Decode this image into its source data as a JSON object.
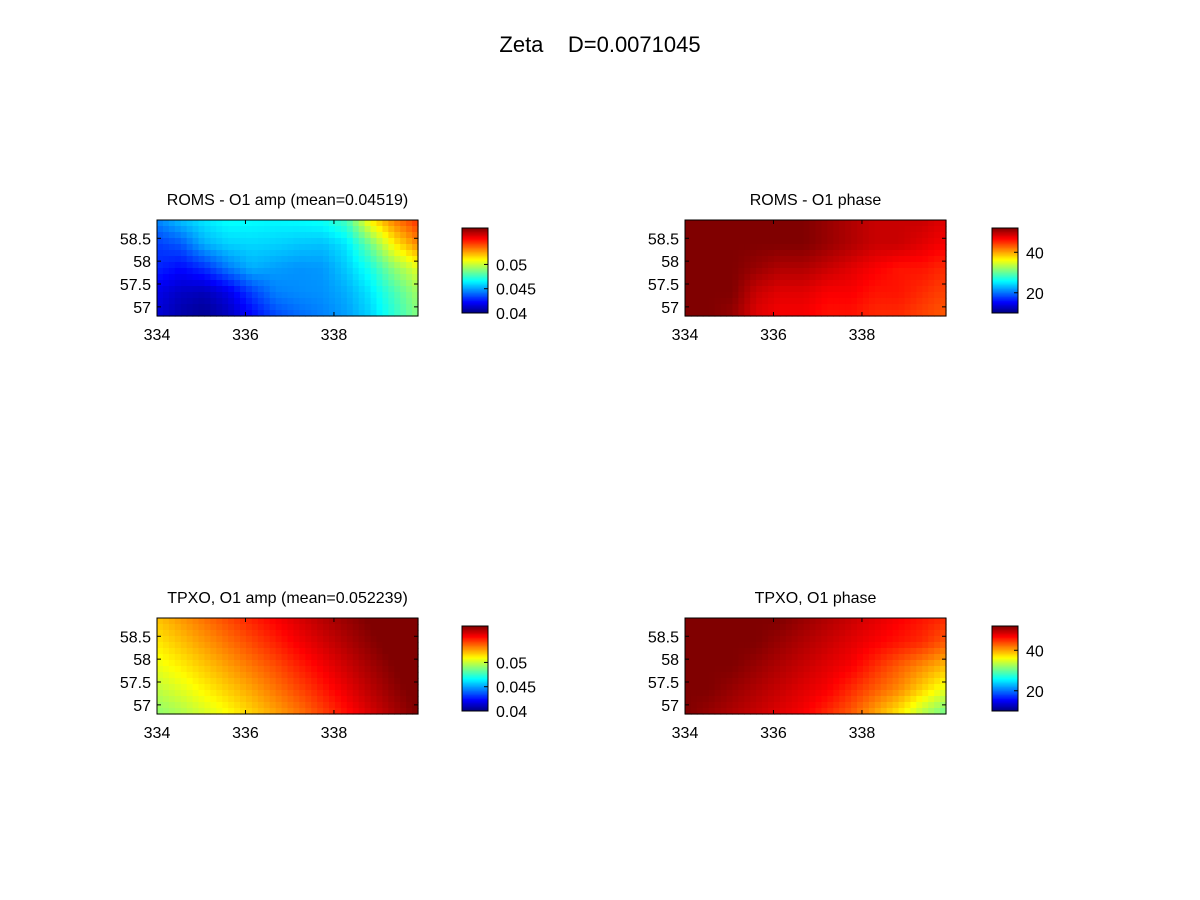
{
  "figure": {
    "title": "Zeta    D=0.0071045"
  },
  "chart_data": [
    {
      "type": "heatmap",
      "title": "ROMS - O1 amp (mean=0.04519)",
      "xticks": [
        "334",
        "336",
        "338"
      ],
      "yticks": [
        "58.5",
        "58",
        "57.5",
        "57"
      ],
      "xlim": [
        334,
        339.9
      ],
      "ylim": [
        56.8,
        58.9
      ],
      "colorbar": {
        "clim": [
          0.04,
          0.0575
        ],
        "ticks": [
          "0.04",
          "0.045",
          "0.05"
        ],
        "tick_values": [
          0.04,
          0.045,
          0.05
        ]
      },
      "grid": [
        [
          0.0445,
          0.0455,
          0.0462,
          0.0467,
          0.0466,
          0.0465,
          0.0466,
          0.0468,
          0.0478,
          0.0512,
          0.0532,
          0.0545
        ],
        [
          0.0432,
          0.0437,
          0.0452,
          0.0458,
          0.0459,
          0.0458,
          0.0456,
          0.0455,
          0.0462,
          0.0485,
          0.0512,
          0.053
        ],
        [
          0.0428,
          0.0423,
          0.043,
          0.0443,
          0.0452,
          0.0449,
          0.0447,
          0.0448,
          0.0457,
          0.047,
          0.049,
          0.0505
        ],
        [
          0.0418,
          0.0412,
          0.041,
          0.0418,
          0.0433,
          0.0444,
          0.0446,
          0.0447,
          0.0452,
          0.0462,
          0.0478,
          0.0493
        ],
        [
          0.0415,
          0.0407,
          0.0403,
          0.041,
          0.0422,
          0.0434,
          0.044,
          0.0444,
          0.0449,
          0.0458,
          0.0473,
          0.0488
        ]
      ]
    },
    {
      "type": "heatmap",
      "title": "ROMS - O1 phase",
      "xticks": [
        "334",
        "336",
        "338"
      ],
      "yticks": [
        "58.5",
        "58",
        "57.5",
        "57"
      ],
      "xlim": [
        334,
        339.9
      ],
      "ylim": [
        56.8,
        58.9
      ],
      "colorbar": {
        "clim": [
          10,
          52
        ],
        "ticks": [
          "20",
          "40"
        ],
        "tick_values": [
          20,
          40
        ]
      },
      "grid": [
        [
          52,
          52,
          52,
          52,
          52,
          52,
          51,
          50,
          49,
          49,
          49,
          48
        ],
        [
          52,
          52,
          52,
          52,
          52,
          52,
          51,
          50,
          49,
          49,
          48,
          47
        ],
        [
          52,
          52,
          52,
          51,
          50,
          50,
          49,
          48,
          47,
          46,
          46,
          45
        ],
        [
          52,
          52,
          52,
          49,
          48,
          48,
          47,
          47,
          46,
          46,
          45,
          44
        ],
        [
          52,
          52,
          51,
          48,
          47,
          47,
          46,
          46,
          45,
          45,
          44,
          43
        ]
      ]
    },
    {
      "type": "heatmap",
      "title": "TPXO, O1 amp (mean=0.052239)",
      "xticks": [
        "334",
        "336",
        "338"
      ],
      "yticks": [
        "58.5",
        "58",
        "57.5",
        "57"
      ],
      "xlim": [
        334,
        339.9
      ],
      "ylim": [
        56.8,
        58.9
      ],
      "colorbar": {
        "clim": [
          0.04,
          0.0575
        ],
        "ticks": [
          "0.04",
          "0.045",
          "0.05"
        ],
        "tick_values": [
          0.04,
          0.045,
          0.05
        ]
      },
      "grid": [
        [
          0.052,
          0.0527,
          0.0534,
          0.0541,
          0.0548,
          0.0554,
          0.056,
          0.0566,
          0.0571,
          0.0576,
          0.058,
          0.0583
        ],
        [
          0.0513,
          0.052,
          0.0527,
          0.0534,
          0.0541,
          0.0548,
          0.0555,
          0.0561,
          0.0567,
          0.0573,
          0.0578,
          0.0582
        ],
        [
          0.0506,
          0.0512,
          0.0519,
          0.0526,
          0.0533,
          0.054,
          0.0548,
          0.0555,
          0.0562,
          0.0569,
          0.0575,
          0.058
        ],
        [
          0.0498,
          0.0504,
          0.0511,
          0.0518,
          0.0525,
          0.0533,
          0.0541,
          0.0549,
          0.0557,
          0.0565,
          0.0572,
          0.0578
        ],
        [
          0.049,
          0.0495,
          0.0502,
          0.0509,
          0.0517,
          0.0525,
          0.0533,
          0.0542,
          0.0551,
          0.056,
          0.0568,
          0.0575
        ]
      ]
    },
    {
      "type": "heatmap",
      "title": "TPXO, O1 phase",
      "xticks": [
        "334",
        "336",
        "338"
      ],
      "yticks": [
        "58.5",
        "58",
        "57.5",
        "57"
      ],
      "xlim": [
        334,
        339.9
      ],
      "ylim": [
        56.8,
        58.9
      ],
      "colorbar": {
        "clim": [
          10,
          52
        ],
        "ticks": [
          "20",
          "40"
        ],
        "tick_values": [
          20,
          40
        ]
      },
      "grid": [
        [
          52,
          52,
          52,
          52,
          52,
          51,
          50,
          49,
          48,
          47,
          46,
          45
        ],
        [
          52,
          52,
          52,
          52,
          51,
          50,
          49,
          48,
          47,
          46,
          45,
          43
        ],
        [
          52,
          52,
          52,
          51,
          50,
          49,
          48,
          47,
          45,
          43,
          41,
          39
        ],
        [
          52,
          52,
          51,
          50,
          49,
          48,
          47,
          45,
          43,
          41,
          38,
          35
        ],
        [
          52,
          51,
          50,
          49,
          48,
          47,
          45,
          43,
          40,
          37,
          33,
          30
        ]
      ]
    }
  ]
}
